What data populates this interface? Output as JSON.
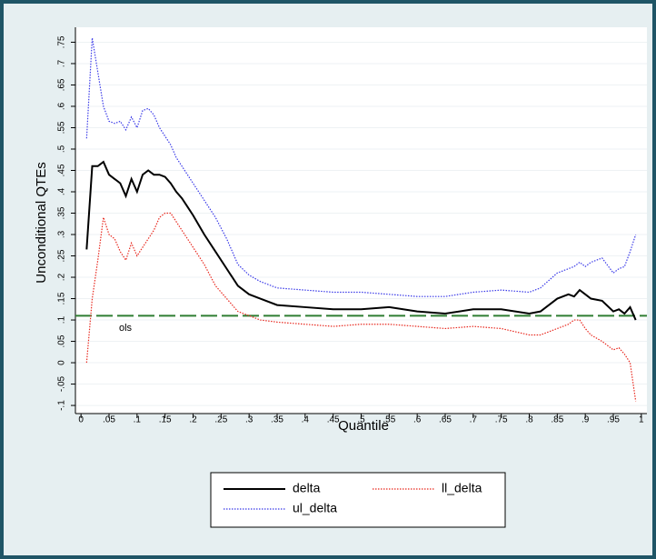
{
  "chart_data": {
    "type": "line",
    "x_label": "Quantile",
    "y_label": "Unconditional QTEs",
    "x": [
      0.01,
      0.02,
      0.03,
      0.04,
      0.05,
      0.06,
      0.07,
      0.08,
      0.09,
      0.1,
      0.11,
      0.12,
      0.13,
      0.14,
      0.15,
      0.16,
      0.17,
      0.18,
      0.19,
      0.2,
      0.22,
      0.24,
      0.26,
      0.28,
      0.3,
      0.32,
      0.35,
      0.4,
      0.45,
      0.5,
      0.55,
      0.6,
      0.65,
      0.7,
      0.75,
      0.8,
      0.82,
      0.85,
      0.87,
      0.88,
      0.89,
      0.9,
      0.91,
      0.93,
      0.95,
      0.96,
      0.97,
      0.98,
      0.99
    ],
    "series": [
      {
        "name": "delta",
        "color": "#000000",
        "style": "solid",
        "values": [
          0.265,
          0.46,
          0.46,
          0.47,
          0.44,
          0.43,
          0.42,
          0.39,
          0.43,
          0.4,
          0.44,
          0.45,
          0.44,
          0.44,
          0.435,
          0.42,
          0.4,
          0.385,
          0.365,
          0.345,
          0.3,
          0.26,
          0.22,
          0.18,
          0.16,
          0.15,
          0.135,
          0.13,
          0.125,
          0.125,
          0.13,
          0.12,
          0.115,
          0.125,
          0.125,
          0.115,
          0.12,
          0.15,
          0.16,
          0.155,
          0.17,
          0.16,
          0.15,
          0.145,
          0.12,
          0.125,
          0.115,
          0.13,
          0.1
        ]
      },
      {
        "name": "ll_delta",
        "color": "#e8281e",
        "style": "dotted",
        "values": [
          0,
          0.15,
          0.24,
          0.34,
          0.3,
          0.29,
          0.26,
          0.24,
          0.28,
          0.25,
          0.27,
          0.29,
          0.31,
          0.34,
          0.35,
          0.35,
          0.33,
          0.31,
          0.29,
          0.27,
          0.23,
          0.18,
          0.15,
          0.12,
          0.11,
          0.1,
          0.095,
          0.09,
          0.085,
          0.09,
          0.09,
          0.085,
          0.08,
          0.085,
          0.08,
          0.065,
          0.065,
          0.08,
          0.09,
          0.1,
          0.1,
          0.08,
          0.065,
          0.05,
          0.03,
          0.035,
          0.02,
          0,
          -0.09
        ]
      },
      {
        "name": "ul_delta",
        "color": "#3a3ae8",
        "style": "dotted",
        "values": [
          0.525,
          0.76,
          0.68,
          0.6,
          0.565,
          0.56,
          0.565,
          0.545,
          0.575,
          0.55,
          0.59,
          0.595,
          0.58,
          0.55,
          0.53,
          0.51,
          0.48,
          0.46,
          0.44,
          0.42,
          0.38,
          0.34,
          0.29,
          0.23,
          0.205,
          0.19,
          0.175,
          0.17,
          0.165,
          0.165,
          0.16,
          0.155,
          0.155,
          0.165,
          0.17,
          0.165,
          0.175,
          0.21,
          0.22,
          0.225,
          0.235,
          0.225,
          0.235,
          0.245,
          0.21,
          0.22,
          0.225,
          0.26,
          0.3
        ]
      }
    ],
    "reference_line": {
      "value": 0.11,
      "label": "ols",
      "color": "#2e7d32"
    },
    "xlim": [
      -0.01,
      1.01
    ],
    "ylim": [
      -0.119,
      0.785
    ],
    "xticks": [
      0,
      {
        "value": 0.05,
        "label": ".05"
      },
      {
        "value": 0.1,
        "label": ".1"
      },
      {
        "value": 0.15,
        "label": ".15"
      },
      {
        "value": 0.2,
        "label": ".2"
      },
      {
        "value": 0.25,
        "label": ".25"
      },
      {
        "value": 0.3,
        "label": ".3"
      },
      {
        "value": 0.35,
        "label": ".35"
      },
      {
        "value": 0.4,
        "label": ".4"
      },
      {
        "value": 0.45,
        "label": ".45"
      },
      {
        "value": 0.5,
        "label": ".5"
      },
      {
        "value": 0.55,
        "label": ".55"
      },
      {
        "value": 0.6,
        "label": ".6"
      },
      {
        "value": 0.65,
        "label": ".65"
      },
      {
        "value": 0.7,
        "label": ".7"
      },
      {
        "value": 0.75,
        "label": ".75"
      },
      {
        "value": 0.8,
        "label": ".8"
      },
      {
        "value": 0.85,
        "label": ".85"
      },
      {
        "value": 0.9,
        "label": ".9"
      },
      {
        "value": 0.95,
        "label": ".95"
      },
      1
    ],
    "yticks": [
      {
        "value": -0.1,
        "label": "-.1"
      },
      {
        "value": -0.05,
        "label": "-.05"
      },
      0,
      {
        "value": 0.05,
        "label": ".05"
      },
      {
        "value": 0.1,
        "label": ".1"
      },
      {
        "value": 0.15,
        "label": ".15"
      },
      {
        "value": 0.2,
        "label": ".2"
      },
      {
        "value": 0.25,
        "label": ".25"
      },
      {
        "value": 0.3,
        "label": ".3"
      },
      {
        "value": 0.35,
        "label": ".35"
      },
      {
        "value": 0.4,
        "label": ".4"
      },
      {
        "value": 0.45,
        "label": ".45"
      },
      {
        "value": 0.5,
        "label": ".5"
      },
      {
        "value": 0.55,
        "label": ".55"
      },
      {
        "value": 0.6,
        "label": ".6"
      },
      {
        "value": 0.65,
        "label": ".65"
      },
      {
        "value": 0.7,
        "label": ".7"
      },
      {
        "value": 0.75,
        "label": ".75"
      }
    ],
    "grid": true
  }
}
